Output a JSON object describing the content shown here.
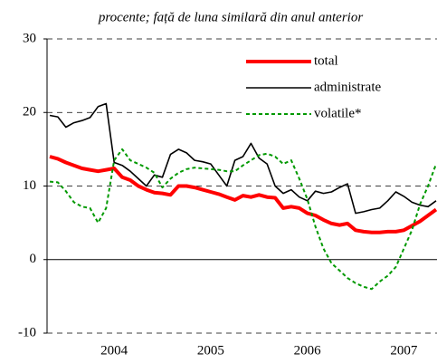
{
  "chart_data": {
    "type": "line",
    "subtitle": "procente; față de luna similară din anul anterior",
    "categories": [
      null,
      null,
      null,
      null,
      null,
      null,
      null,
      null,
      "2004",
      null,
      null,
      null,
      null,
      null,
      null,
      null,
      null,
      null,
      null,
      null,
      "2005",
      null,
      null,
      null,
      null,
      null,
      null,
      null,
      null,
      null,
      null,
      null,
      "2006",
      null,
      null,
      null,
      null,
      null,
      null,
      null,
      null,
      null,
      null,
      null,
      "2007",
      null,
      null,
      null,
      null
    ],
    "series": [
      {
        "name": "total",
        "color": "#ff0000",
        "width": 4,
        "dash": "none",
        "values": [
          14,
          13.7,
          13.2,
          12.8,
          12.4,
          12.2,
          12,
          12.2,
          12.4,
          11.2,
          10.8,
          10,
          9.5,
          9.1,
          9,
          8.8,
          10,
          10,
          9.8,
          9.5,
          9.2,
          8.9,
          8.5,
          8.1,
          8.7,
          8.5,
          8.8,
          8.5,
          8.4,
          7,
          7.2,
          7,
          6.3,
          6,
          5.4,
          4.9,
          4.7,
          4.9,
          4,
          3.8,
          3.7,
          3.7,
          3.8,
          3.8,
          4,
          4.6,
          5.2,
          6,
          6.8
        ]
      },
      {
        "name": "administrate",
        "color": "#000000",
        "width": 1.6,
        "dash": "none",
        "values": [
          19.6,
          19.4,
          18,
          18.6,
          18.9,
          19.3,
          20.8,
          21.2,
          13.2,
          12.8,
          12,
          11,
          10,
          11.5,
          11.2,
          14.3,
          15,
          14.5,
          13.5,
          13.3,
          13,
          11.5,
          10,
          13.5,
          14,
          15.8,
          13.8,
          13,
          10,
          9,
          9.5,
          8.5,
          8,
          9.3,
          9,
          9.2,
          9.8,
          10.3,
          6.3,
          6.5,
          6.8,
          7,
          8,
          9.2,
          8.6,
          7.8,
          7.4,
          7.2,
          8
        ]
      },
      {
        "name": "volatile*",
        "color": "#009900",
        "width": 2,
        "dash": "4 3",
        "values": [
          10.6,
          10.5,
          9.3,
          7.8,
          7.2,
          7,
          5,
          7,
          13.5,
          15,
          13.5,
          13,
          12.5,
          11.8,
          9.8,
          11,
          11.8,
          12.3,
          12.5,
          12.4,
          12.3,
          12.2,
          12,
          12,
          12.8,
          13.5,
          14.2,
          14.4,
          14,
          13,
          13.5,
          11,
          8.2,
          4.5,
          1.5,
          -0.5,
          -1.5,
          -2.5,
          -3.2,
          -3.7,
          -4,
          -3,
          -2.2,
          -1,
          1.5,
          4,
          7.5,
          10,
          13
        ]
      }
    ],
    "ylim": [
      -10,
      30
    ],
    "yticks": [
      -10,
      0,
      10,
      20,
      30
    ],
    "grid": true,
    "legend": "top-right"
  }
}
